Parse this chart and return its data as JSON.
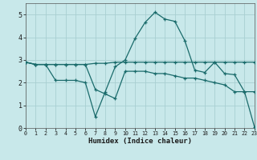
{
  "xlabel": "Humidex (Indice chaleur)",
  "bg_color": "#c8e8ea",
  "grid_color": "#a8cfd2",
  "line_color": "#1a6b6b",
  "xlim": [
    0,
    23
  ],
  "ylim": [
    0,
    5.5
  ],
  "yticks": [
    0,
    1,
    2,
    3,
    4,
    5
  ],
  "xticks": [
    0,
    1,
    2,
    3,
    4,
    5,
    6,
    7,
    8,
    9,
    10,
    11,
    12,
    13,
    14,
    15,
    16,
    17,
    18,
    19,
    20,
    21,
    22,
    23
  ],
  "line1_x": [
    0,
    1,
    2,
    3,
    4,
    5,
    6,
    7,
    8,
    9,
    10,
    11,
    12,
    13,
    14,
    15,
    16,
    17,
    18,
    19,
    20,
    21,
    22,
    23
  ],
  "line1_y": [
    2.9,
    2.8,
    2.8,
    2.8,
    2.8,
    2.8,
    2.8,
    2.85,
    2.85,
    2.9,
    2.9,
    2.9,
    2.9,
    2.9,
    2.9,
    2.9,
    2.9,
    2.9,
    2.9,
    2.9,
    2.9,
    2.9,
    2.9,
    2.9
  ],
  "line2_x": [
    0,
    1,
    2,
    3,
    4,
    5,
    6,
    7,
    8,
    9,
    10,
    11,
    12,
    13,
    14,
    15,
    16,
    17,
    18,
    19,
    20,
    21,
    22,
    23
  ],
  "line2_y": [
    2.9,
    2.8,
    2.8,
    2.1,
    2.1,
    2.1,
    2.0,
    0.5,
    1.6,
    2.7,
    3.0,
    3.95,
    4.65,
    5.1,
    4.8,
    4.7,
    3.85,
    2.55,
    2.45,
    2.9,
    2.4,
    2.35,
    1.6,
    1.6
  ],
  "line3_x": [
    0,
    1,
    2,
    3,
    4,
    5,
    6,
    7,
    8,
    9,
    10,
    11,
    12,
    13,
    14,
    15,
    16,
    17,
    18,
    19,
    20,
    21,
    22,
    23
  ],
  "line3_y": [
    2.9,
    2.8,
    2.8,
    2.8,
    2.8,
    2.8,
    2.8,
    1.7,
    1.5,
    1.3,
    2.5,
    2.5,
    2.5,
    2.4,
    2.4,
    2.3,
    2.2,
    2.2,
    2.1,
    2.0,
    1.9,
    1.6,
    1.6,
    0.05
  ]
}
